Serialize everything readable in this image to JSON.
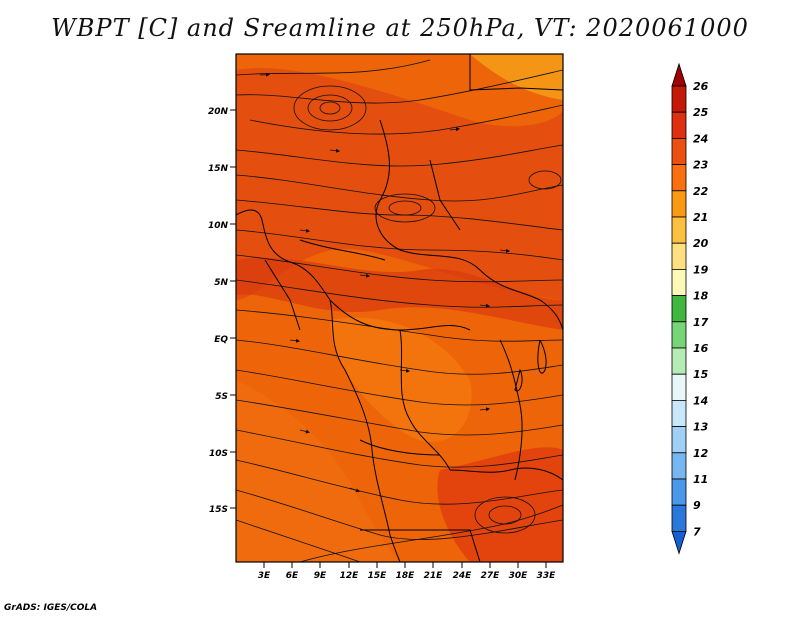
{
  "title": "WBPT [C] and Sreamline at 250hPa, VT: 2020061000",
  "credit": "GrADS: IGES/COLA",
  "map": {
    "lat_ticks": [
      "20N",
      "15N",
      "10N",
      "5N",
      "EQ",
      "5S",
      "10S",
      "15S"
    ],
    "lon_ticks": [
      "3E",
      "6E",
      "9E",
      "12E",
      "15E",
      "18E",
      "21E",
      "24E",
      "27E",
      "30E",
      "33E"
    ],
    "field": "WBPT",
    "level": "250hPa"
  },
  "colorbar": {
    "labels": [
      "26",
      "25",
      "24",
      "23",
      "22",
      "21",
      "20",
      "19",
      "18",
      "17",
      "16",
      "15",
      "14",
      "13",
      "12",
      "11",
      "9",
      "7"
    ],
    "colors": [
      "#a00000",
      "#c41808",
      "#dc3010",
      "#ec5010",
      "#f87010",
      "#fa9a14",
      "#fcc040",
      "#fde080",
      "#fef8b8",
      "#40b840",
      "#78d478",
      "#b4ecb4",
      "#e8f8f8",
      "#c8e8fa",
      "#a0d0f6",
      "#78b6f0",
      "#4a98ea",
      "#2a78dc",
      "#1460d0"
    ]
  }
}
